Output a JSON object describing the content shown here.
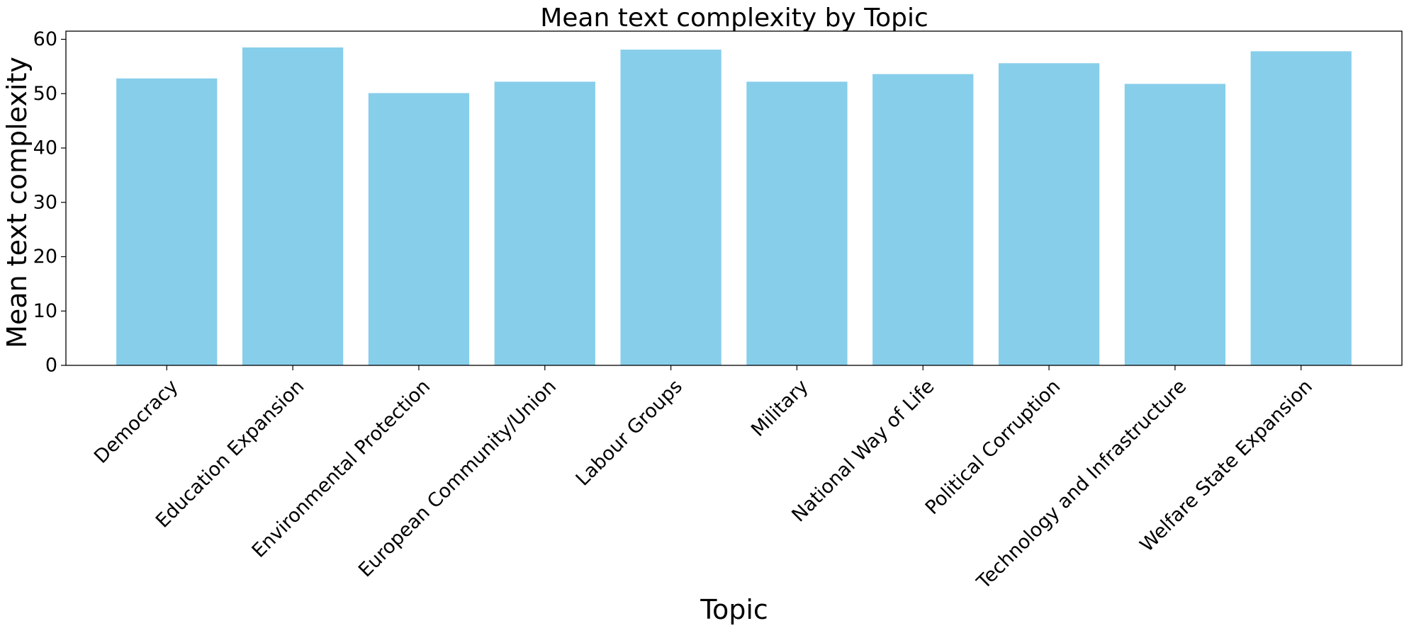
{
  "chart_data": {
    "type": "bar",
    "title": "Mean text complexity by Topic",
    "xlabel": "Topic",
    "ylabel": "Mean text complexity",
    "categories": [
      "Democracy",
      "Education Expansion",
      "Environmental Protection",
      "European Community/Union",
      "Labour Groups",
      "Military",
      "National Way of Life",
      "Political Corruption",
      "Technology and Infrastructure",
      "Welfare State Expansion"
    ],
    "values": [
      52.8,
      58.5,
      50.1,
      52.2,
      58.1,
      52.2,
      53.6,
      55.6,
      51.8,
      57.8
    ],
    "ylim": [
      0,
      61.5
    ],
    "yticks": [
      0,
      10,
      20,
      30,
      40,
      50,
      60
    ],
    "grid": false,
    "bar_color": "#87CEEB"
  }
}
